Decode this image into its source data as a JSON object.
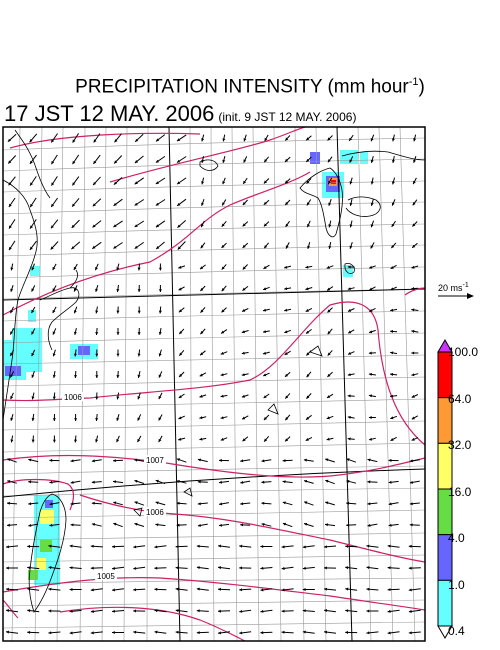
{
  "title": {
    "text": "PRECIPITATION INTENSITY (mm hour",
    "unit_exponent": "-1",
    "close": ")"
  },
  "subtitle": {
    "valid_time": "17 JST 12 MAY. 2006",
    "init_time": "(init. 9 JST 12 MAY. 2006)"
  },
  "wind_scale": {
    "label": "20 ms",
    "exponent": "-1"
  },
  "colorbar": {
    "labels": [
      "100.0",
      "64.0",
      "32.0",
      "16.0",
      "4.0",
      "1.0",
      "0.4"
    ],
    "colors": [
      "#ff0000",
      "#ff9933",
      "#ffff66",
      "#66dd44",
      "#6666ff",
      "#66ffff"
    ],
    "over_color": "#cc33ff"
  },
  "isobars": {
    "labels": [
      "1006",
      "1007",
      "1006",
      "1005"
    ]
  },
  "colors": {
    "isobar": "#cc2266",
    "coast": "#000000",
    "grid": "#999999",
    "arrow": "#000000"
  }
}
